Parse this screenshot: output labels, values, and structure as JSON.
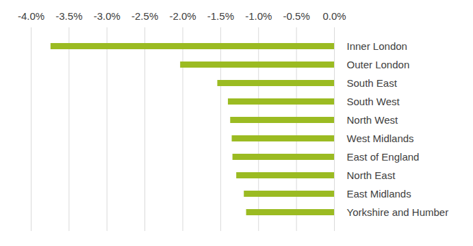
{
  "chart_data": {
    "type": "bar",
    "orientation": "horizontal",
    "categories": [
      "Inner London",
      "Outer London",
      "South East",
      "South West",
      "North West",
      "West Midlands",
      "East of England",
      "North East",
      "East Midlands",
      "Yorkshire and Humber"
    ],
    "values": [
      -3.74,
      -2.03,
      -1.54,
      -1.4,
      -1.37,
      -1.35,
      -1.34,
      -1.29,
      -1.19,
      -1.16
    ],
    "color": "#9bbb22",
    "xlim": [
      -4.0,
      0.0
    ],
    "xticks": [
      {
        "value": -4.0,
        "label": "-4.0%"
      },
      {
        "value": -3.5,
        "label": "-3.5%"
      },
      {
        "value": -3.0,
        "label": "-3.0%"
      },
      {
        "value": -2.5,
        "label": "-2.5%"
      },
      {
        "value": -2.0,
        "label": "-2.0%"
      },
      {
        "value": -1.5,
        "label": "-1.5%"
      },
      {
        "value": -1.0,
        "label": "-1.0%"
      },
      {
        "value": -0.5,
        "label": "-0.5%"
      },
      {
        "value": 0.0,
        "label": "0.0%"
      }
    ],
    "grid": true
  }
}
